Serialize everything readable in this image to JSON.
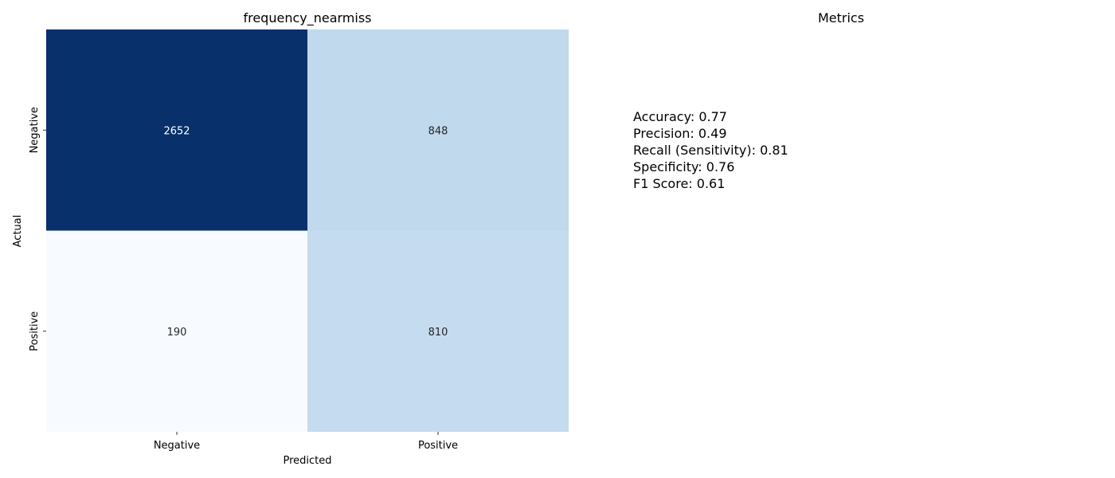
{
  "chart_data": {
    "type": "heatmap",
    "title": "frequency_nearmiss",
    "xlabel": "Predicted",
    "ylabel": "Actual",
    "x_categories": [
      "Negative",
      "Positive"
    ],
    "y_categories": [
      "Negative",
      "Positive"
    ],
    "values": [
      [
        2652,
        848
      ],
      [
        190,
        810
      ]
    ],
    "colormap": "Blues",
    "vmin": 190,
    "vmax": 2652,
    "colorbar": false
  },
  "metrics_panel": {
    "title": "Metrics",
    "lines": [
      "Accuracy: 0.77",
      "Precision: 0.49",
      "Recall (Sensitivity): 0.81",
      "Specificity: 0.76",
      "F1 Score: 0.61"
    ]
  }
}
